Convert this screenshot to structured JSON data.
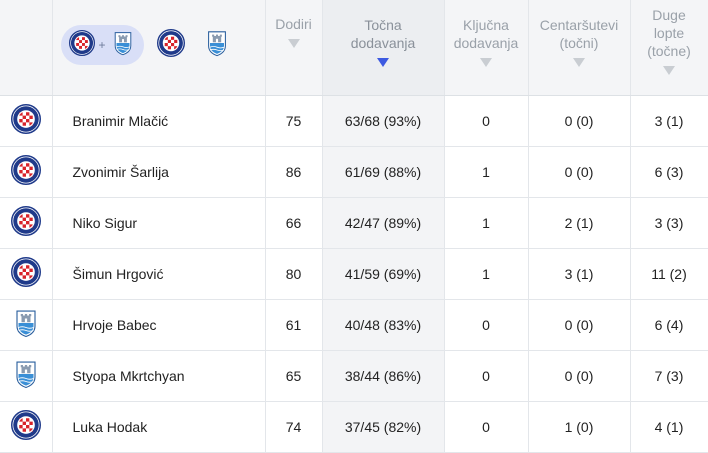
{
  "filters": {
    "combined_label": "+",
    "teams": [
      "hajduk-split",
      "osijek"
    ]
  },
  "columns": [
    {
      "key": "dodiri",
      "lines": [
        "Dodiri"
      ],
      "sorted": false
    },
    {
      "key": "tocna",
      "lines": [
        "Točna",
        "dodavanja"
      ],
      "sorted": true
    },
    {
      "key": "kljucna",
      "lines": [
        "Ključna",
        "dodavanja"
      ],
      "sorted": false
    },
    {
      "key": "centarsutevi",
      "lines": [
        "Centaršutevi",
        "(točni)"
      ],
      "sorted": false
    },
    {
      "key": "duge",
      "lines": [
        "Duge",
        "lopte",
        "(točne)"
      ],
      "sorted": false
    }
  ],
  "header_text": {
    "dodiri": "Dodiri",
    "tocna_1": "Točna",
    "tocna_2": "dodavanja",
    "kljucna_1": "Ključna",
    "kljucna_2": "dodavanja",
    "centarsutevi_1": "Centaršutevi",
    "centarsutevi_2": "(točni)",
    "duge_1": "Duge",
    "duge_2": "lopte",
    "duge_3": "(točne)"
  },
  "rows": [
    {
      "team": "hajduk-split",
      "name": "Branimir Mlačić",
      "dodiri": "75",
      "tocna": "63/68 (93%)",
      "kljucna": "0",
      "centarsutevi": "0 (0)",
      "duge": "3 (1)"
    },
    {
      "team": "hajduk-split",
      "name": "Zvonimir Šarlija",
      "dodiri": "86",
      "tocna": "61/69 (88%)",
      "kljucna": "1",
      "centarsutevi": "0 (0)",
      "duge": "6 (3)"
    },
    {
      "team": "hajduk-split",
      "name": "Niko Sigur",
      "dodiri": "66",
      "tocna": "42/47 (89%)",
      "kljucna": "1",
      "centarsutevi": "2 (1)",
      "duge": "3 (3)"
    },
    {
      "team": "hajduk-split",
      "name": "Šimun Hrgović",
      "dodiri": "80",
      "tocna": "41/59 (69%)",
      "kljucna": "1",
      "centarsutevi": "3 (1)",
      "duge": "11 (2)"
    },
    {
      "team": "osijek",
      "name": "Hrvoje Babec",
      "dodiri": "61",
      "tocna": "40/48 (83%)",
      "kljucna": "0",
      "centarsutevi": "0 (0)",
      "duge": "6 (4)"
    },
    {
      "team": "osijek",
      "name": "Styopa Mkrtchyan",
      "dodiri": "65",
      "tocna": "38/44 (86%)",
      "kljucna": "0",
      "centarsutevi": "0 (0)",
      "duge": "7 (3)"
    },
    {
      "team": "hajduk-split",
      "name": "Luka Hodak",
      "dodiri": "74",
      "tocna": "37/45 (82%)",
      "kljucna": "0",
      "centarsutevi": "1 (0)",
      "duge": "4 (1)"
    }
  ],
  "colors": {
    "hajduk_red": "#d8232a",
    "hajduk_blue": "#1f3a8a",
    "osijek_blue": "#3a8fd6",
    "sort_arrow_active": "#3d5ae1",
    "pill_bg": "#d9dff7"
  }
}
